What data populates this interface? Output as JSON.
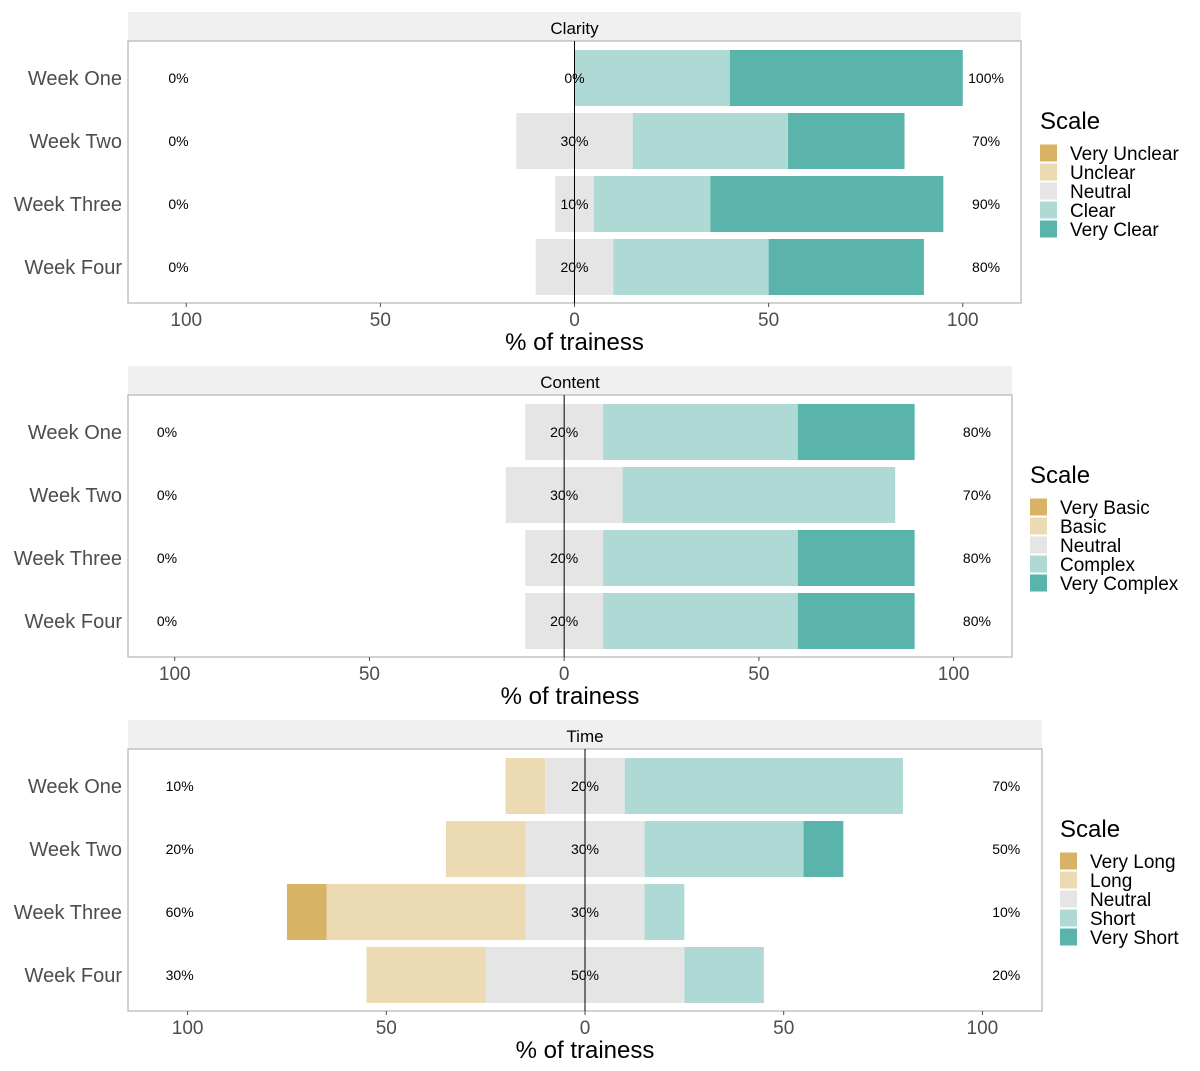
{
  "colors": {
    "level1": "#d8b365",
    "level2": "#ecdbb2",
    "level3": "#e5e5e5",
    "level4": "#aed9d5",
    "level5": "#5ab4ac",
    "strip": "#f0f0f0",
    "panel_border": "#b3b3b3",
    "text_dark": "#000000",
    "text_axis": "#4d4d4d"
  },
  "chart_data": [
    {
      "type": "bar",
      "subtype": "diverging-stacked-likert",
      "title": "Clarity",
      "xlabel": "% of trainess",
      "xlim": [
        -115,
        115
      ],
      "x_ticks": [
        -100,
        -50,
        0,
        50,
        100
      ],
      "x_tick_labels": [
        "100",
        "50",
        "0",
        "50",
        "100"
      ],
      "categories": [
        "Week One",
        "Week Two",
        "Week Three",
        "Week Four"
      ],
      "legend_title": "Scale",
      "legend_labels": [
        "Very Unclear",
        "Unclear",
        "Neutral",
        "Clear",
        "Very Clear"
      ],
      "series": [
        {
          "name": "Very Unclear",
          "values": [
            0,
            0,
            0,
            0
          ]
        },
        {
          "name": "Unclear",
          "values": [
            0,
            0,
            0,
            0
          ]
        },
        {
          "name": "Neutral",
          "values": [
            0,
            30,
            10,
            20
          ]
        },
        {
          "name": "Clear",
          "values": [
            40,
            40,
            30,
            40
          ]
        },
        {
          "name": "Very Clear",
          "values": [
            60,
            30,
            60,
            40
          ]
        }
      ],
      "left_labels": [
        "0%",
        "0%",
        "0%",
        "0%"
      ],
      "center_labels": [
        "0%",
        "30%",
        "10%",
        "20%"
      ],
      "right_labels": [
        "100%",
        "70%",
        "90%",
        "80%"
      ]
    },
    {
      "type": "bar",
      "subtype": "diverging-stacked-likert",
      "title": "Content",
      "xlabel": "% of trainess",
      "xlim": [
        -112,
        115
      ],
      "x_ticks": [
        -100,
        -50,
        0,
        50,
        100
      ],
      "x_tick_labels": [
        "100",
        "50",
        "0",
        "50",
        "100"
      ],
      "categories": [
        "Week One",
        "Week Two",
        "Week Three",
        "Week Four"
      ],
      "legend_title": "Scale",
      "legend_labels": [
        "Very Basic",
        "Basic",
        "Neutral",
        "Complex",
        "Very Complex"
      ],
      "series": [
        {
          "name": "Very Basic",
          "values": [
            0,
            0,
            0,
            0
          ]
        },
        {
          "name": "Basic",
          "values": [
            0,
            0,
            0,
            0
          ]
        },
        {
          "name": "Neutral",
          "values": [
            20,
            30,
            20,
            20
          ]
        },
        {
          "name": "Complex",
          "values": [
            50,
            70,
            50,
            50
          ]
        },
        {
          "name": "Very Complex",
          "values": [
            30,
            0,
            30,
            30
          ]
        }
      ],
      "left_labels": [
        "0%",
        "0%",
        "0%",
        "0%"
      ],
      "center_labels": [
        "20%",
        "30%",
        "20%",
        "20%"
      ],
      "right_labels": [
        "80%",
        "70%",
        "80%",
        "80%"
      ]
    },
    {
      "type": "bar",
      "subtype": "diverging-stacked-likert",
      "title": "Time",
      "xlabel": "% of trainess",
      "xlim": [
        -115,
        115
      ],
      "x_ticks": [
        -100,
        -50,
        0,
        50,
        100
      ],
      "x_tick_labels": [
        "100",
        "50",
        "0",
        "50",
        "100"
      ],
      "categories": [
        "Week One",
        "Week Two",
        "Week Three",
        "Week Four"
      ],
      "legend_title": "Scale",
      "legend_labels": [
        "Very Long",
        "Long",
        "Neutral",
        "Short",
        "Very Short"
      ],
      "series": [
        {
          "name": "Very Long",
          "values": [
            0,
            0,
            10,
            0
          ]
        },
        {
          "name": "Long",
          "values": [
            10,
            20,
            50,
            30
          ]
        },
        {
          "name": "Neutral",
          "values": [
            20,
            30,
            30,
            50
          ]
        },
        {
          "name": "Short",
          "values": [
            70,
            40,
            10,
            20
          ]
        },
        {
          "name": "Very Short",
          "values": [
            0,
            10,
            0,
            0
          ]
        }
      ],
      "left_labels": [
        "10%",
        "20%",
        "60%",
        "30%"
      ],
      "center_labels": [
        "20%",
        "30%",
        "30%",
        "50%"
      ],
      "right_labels": [
        "70%",
        "50%",
        "10%",
        "20%"
      ]
    }
  ]
}
